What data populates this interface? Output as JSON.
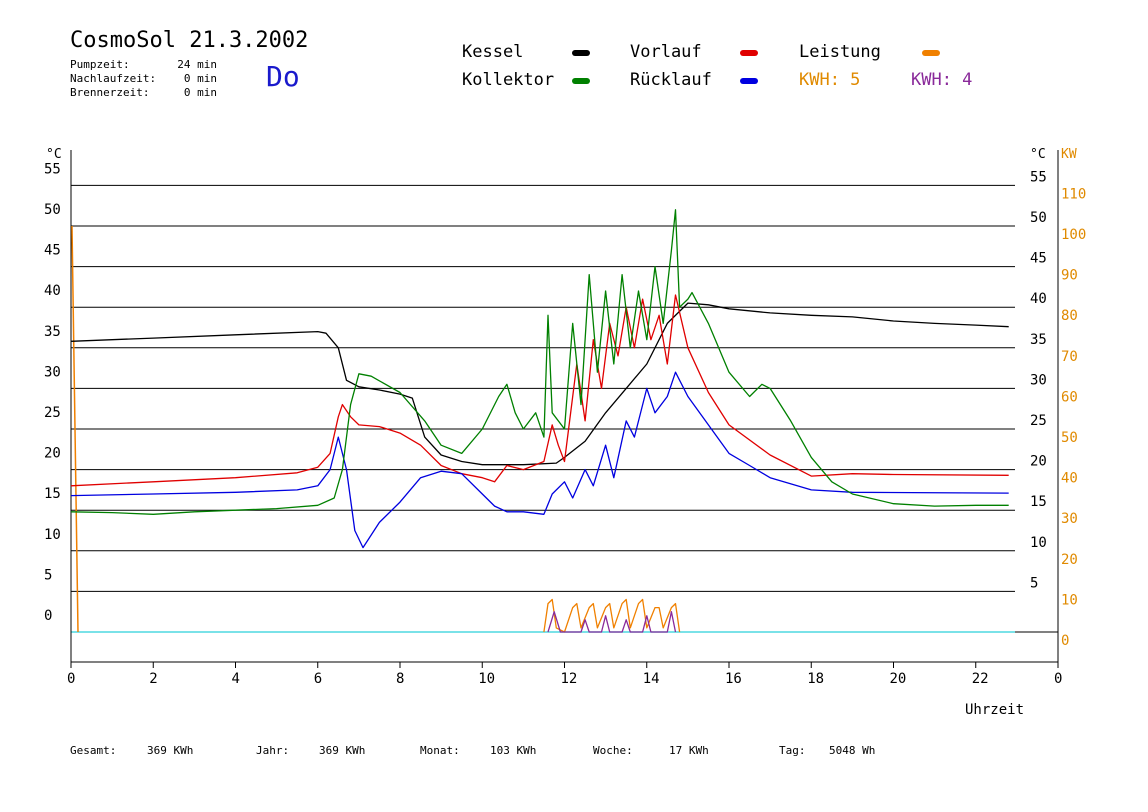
{
  "header": {
    "title": "CosmoSol 21.3.2002",
    "day": "Do",
    "stats": [
      {
        "label": "Pumpzeit:",
        "value": "24 min"
      },
      {
        "label": "Nachlaufzeit:",
        "value": "0 min"
      },
      {
        "label": "Brennerzeit:",
        "value": "0 min"
      }
    ]
  },
  "legend": {
    "items": [
      {
        "label": "Kessel",
        "color": "#000000"
      },
      {
        "label": "Vorlauf",
        "color": "#e00000"
      },
      {
        "label": "Leistung",
        "color": "#f08000"
      },
      {
        "label": "Kollektor",
        "color": "#008000"
      },
      {
        "label": "Rücklauf",
        "color": "#0000e0"
      }
    ],
    "kwh1": "KWH: 5",
    "kwh2": "KWH: 4",
    "kwh1_color": "#e08a00",
    "kwh2_color": "#8a2a9a"
  },
  "footer": {
    "items": [
      {
        "label": "Gesamt:",
        "value": "369 KWh"
      },
      {
        "label": "Jahr:",
        "value": "369 KWh"
      },
      {
        "label": "Monat:",
        "value": "103 KWh"
      },
      {
        "label": "Woche:",
        "value": "17 KWh"
      },
      {
        "label": "Tag:",
        "value": "5048 Wh"
      }
    ]
  },
  "chart_data": {
    "type": "line",
    "xlabel": "Uhrzeit",
    "ylabel_left": "°C",
    "ylabel_right_temp": "°C",
    "ylabel_right_power": "KW",
    "xlim": [
      0,
      24
    ],
    "ylim": [
      0,
      60
    ],
    "x_ticks": [
      "0",
      "2",
      "4",
      "6",
      "8",
      "10",
      "12",
      "14",
      "16",
      "18",
      "20",
      "22",
      "0"
    ],
    "y_ticks_left": [
      "0",
      "5",
      "10",
      "15",
      "20",
      "25",
      "30",
      "35",
      "40",
      "45",
      "50",
      "55"
    ],
    "y_ticks_right_temp": [
      "5",
      "10",
      "15",
      "20",
      "25",
      "30",
      "35",
      "40",
      "45",
      "50",
      "55"
    ],
    "y_ticks_right_power": [
      "0",
      "10",
      "20",
      "30",
      "40",
      "50",
      "60",
      "70",
      "80",
      "90",
      "100",
      "110"
    ],
    "grid": true,
    "series": [
      {
        "name": "Kessel",
        "color": "#000000",
        "points": [
          [
            0,
            35.8
          ],
          [
            2,
            36.2
          ],
          [
            4,
            36.6
          ],
          [
            6,
            37
          ],
          [
            6.2,
            36.8
          ],
          [
            6.5,
            35
          ],
          [
            6.7,
            31
          ],
          [
            7,
            30.2
          ],
          [
            7.5,
            29.8
          ],
          [
            8,
            29.3
          ],
          [
            8.3,
            28.8
          ],
          [
            8.6,
            24
          ],
          [
            9,
            21.8
          ],
          [
            9.5,
            21
          ],
          [
            10,
            20.6
          ],
          [
            11,
            20.6
          ],
          [
            11.8,
            20.8
          ],
          [
            12,
            21.5
          ],
          [
            12.5,
            23.5
          ],
          [
            13,
            27
          ],
          [
            13.5,
            30
          ],
          [
            14,
            33
          ],
          [
            14.5,
            38
          ],
          [
            15,
            40.5
          ],
          [
            15.5,
            40.3
          ],
          [
            16,
            39.8
          ],
          [
            17,
            39.3
          ],
          [
            18,
            39
          ],
          [
            19,
            38.8
          ],
          [
            20,
            38.3
          ],
          [
            21,
            38
          ],
          [
            22,
            37.8
          ],
          [
            22.8,
            37.6
          ]
        ]
      },
      {
        "name": "Vorlauf",
        "color": "#e00000",
        "points": [
          [
            0,
            18
          ],
          [
            2,
            18.5
          ],
          [
            4,
            19
          ],
          [
            5.5,
            19.6
          ],
          [
            6,
            20.3
          ],
          [
            6.3,
            22
          ],
          [
            6.5,
            26.5
          ],
          [
            6.6,
            28
          ],
          [
            6.8,
            26.5
          ],
          [
            7,
            25.5
          ],
          [
            7.5,
            25.3
          ],
          [
            8,
            24.5
          ],
          [
            8.5,
            23
          ],
          [
            9,
            20.5
          ],
          [
            9.5,
            19.5
          ],
          [
            10,
            19
          ],
          [
            10.3,
            18.5
          ],
          [
            10.6,
            20.5
          ],
          [
            11,
            20
          ],
          [
            11.5,
            21
          ],
          [
            11.7,
            25.5
          ],
          [
            11.85,
            23
          ],
          [
            12,
            21
          ],
          [
            12.3,
            33
          ],
          [
            12.5,
            26
          ],
          [
            12.7,
            36
          ],
          [
            12.9,
            30
          ],
          [
            13.1,
            38
          ],
          [
            13.3,
            34
          ],
          [
            13.5,
            40
          ],
          [
            13.7,
            35
          ],
          [
            13.9,
            41
          ],
          [
            14.1,
            36
          ],
          [
            14.3,
            39
          ],
          [
            14.5,
            33
          ],
          [
            14.7,
            41.5
          ],
          [
            15,
            35
          ],
          [
            15.5,
            29.5
          ],
          [
            16,
            25.5
          ],
          [
            17,
            21.8
          ],
          [
            18,
            19.2
          ],
          [
            19,
            19.5
          ],
          [
            20,
            19.4
          ],
          [
            22.8,
            19.3
          ]
        ]
      },
      {
        "name": "Rücklauf",
        "color": "#0000e0",
        "points": [
          [
            0,
            16.8
          ],
          [
            2,
            17
          ],
          [
            4,
            17.2
          ],
          [
            5.5,
            17.5
          ],
          [
            6,
            18
          ],
          [
            6.3,
            20
          ],
          [
            6.5,
            24
          ],
          [
            6.7,
            20
          ],
          [
            6.9,
            12.5
          ],
          [
            7.1,
            10.4
          ],
          [
            7.5,
            13.5
          ],
          [
            8,
            16
          ],
          [
            8.5,
            19
          ],
          [
            9,
            19.8
          ],
          [
            9.5,
            19.5
          ],
          [
            10,
            17
          ],
          [
            10.3,
            15.5
          ],
          [
            10.6,
            14.8
          ],
          [
            11,
            14.8
          ],
          [
            11.5,
            14.5
          ],
          [
            11.7,
            17
          ],
          [
            12,
            18.5
          ],
          [
            12.2,
            16.5
          ],
          [
            12.5,
            20
          ],
          [
            12.7,
            18
          ],
          [
            13,
            23
          ],
          [
            13.2,
            19
          ],
          [
            13.5,
            26
          ],
          [
            13.7,
            24
          ],
          [
            14,
            30
          ],
          [
            14.2,
            27
          ],
          [
            14.5,
            29
          ],
          [
            14.7,
            32
          ],
          [
            15,
            29
          ],
          [
            15.5,
            25.5
          ],
          [
            16,
            22
          ],
          [
            16.5,
            20.5
          ],
          [
            17,
            19
          ],
          [
            18,
            17.5
          ],
          [
            19,
            17.2
          ],
          [
            22.8,
            17.1
          ]
        ]
      },
      {
        "name": "Kollektor",
        "color": "#008000",
        "points": [
          [
            0,
            14.8
          ],
          [
            1,
            14.7
          ],
          [
            2,
            14.5
          ],
          [
            3,
            14.8
          ],
          [
            4,
            15
          ],
          [
            5,
            15.2
          ],
          [
            6,
            15.6
          ],
          [
            6.4,
            16.5
          ],
          [
            6.6,
            20
          ],
          [
            6.8,
            28
          ],
          [
            7,
            31.8
          ],
          [
            7.3,
            31.5
          ],
          [
            8,
            29.5
          ],
          [
            8.6,
            26
          ],
          [
            9,
            23
          ],
          [
            9.5,
            22
          ],
          [
            10,
            25
          ],
          [
            10.4,
            29
          ],
          [
            10.6,
            30.5
          ],
          [
            10.8,
            27
          ],
          [
            11,
            25
          ],
          [
            11.3,
            27
          ],
          [
            11.5,
            24
          ],
          [
            11.6,
            39
          ],
          [
            11.7,
            27
          ],
          [
            12,
            25
          ],
          [
            12.2,
            38
          ],
          [
            12.4,
            28
          ],
          [
            12.6,
            44
          ],
          [
            12.8,
            32
          ],
          [
            13,
            42
          ],
          [
            13.2,
            33
          ],
          [
            13.4,
            44
          ],
          [
            13.6,
            35
          ],
          [
            13.8,
            42
          ],
          [
            14,
            36
          ],
          [
            14.2,
            45
          ],
          [
            14.4,
            38
          ],
          [
            14.6,
            47
          ],
          [
            14.7,
            52
          ],
          [
            14.8,
            40
          ],
          [
            15,
            41
          ],
          [
            15.1,
            41.8
          ],
          [
            15.5,
            38
          ],
          [
            16,
            32
          ],
          [
            16.5,
            29
          ],
          [
            16.8,
            30.5
          ],
          [
            17,
            30
          ],
          [
            17.5,
            26
          ],
          [
            18,
            21.5
          ],
          [
            18.5,
            18.5
          ],
          [
            19,
            17
          ],
          [
            20,
            15.8
          ],
          [
            21,
            15.5
          ],
          [
            22,
            15.6
          ],
          [
            22.8,
            15.6
          ]
        ]
      },
      {
        "name": "Leistung",
        "color": "#f08000",
        "axis": "power",
        "points": [
          [
            11.5,
            0
          ],
          [
            11.6,
            7
          ],
          [
            11.7,
            8
          ],
          [
            11.8,
            1
          ],
          [
            12,
            0
          ],
          [
            12.2,
            6
          ],
          [
            12.3,
            7
          ],
          [
            12.4,
            1
          ],
          [
            12.6,
            6
          ],
          [
            12.7,
            7
          ],
          [
            12.8,
            1
          ],
          [
            13,
            6
          ],
          [
            13.1,
            7
          ],
          [
            13.2,
            1
          ],
          [
            13.4,
            7
          ],
          [
            13.5,
            8
          ],
          [
            13.6,
            1
          ],
          [
            13.8,
            7
          ],
          [
            13.9,
            8
          ],
          [
            14,
            1
          ],
          [
            14.2,
            6
          ],
          [
            14.3,
            6
          ],
          [
            14.4,
            1
          ],
          [
            14.6,
            6
          ],
          [
            14.7,
            7
          ],
          [
            14.8,
            0
          ]
        ]
      },
      {
        "name": "KWH2",
        "color": "#8a2a9a",
        "axis": "power",
        "points": [
          [
            11.6,
            0
          ],
          [
            11.75,
            5
          ],
          [
            11.9,
            0
          ],
          [
            12.4,
            0
          ],
          [
            12.5,
            3
          ],
          [
            12.6,
            0
          ],
          [
            12.9,
            0
          ],
          [
            13,
            4
          ],
          [
            13.1,
            0
          ],
          [
            13.4,
            0
          ],
          [
            13.5,
            3
          ],
          [
            13.6,
            0
          ],
          [
            13.9,
            0
          ],
          [
            14,
            4
          ],
          [
            14.1,
            0
          ],
          [
            14.5,
            0
          ],
          [
            14.6,
            5
          ],
          [
            14.7,
            0
          ]
        ]
      }
    ]
  }
}
